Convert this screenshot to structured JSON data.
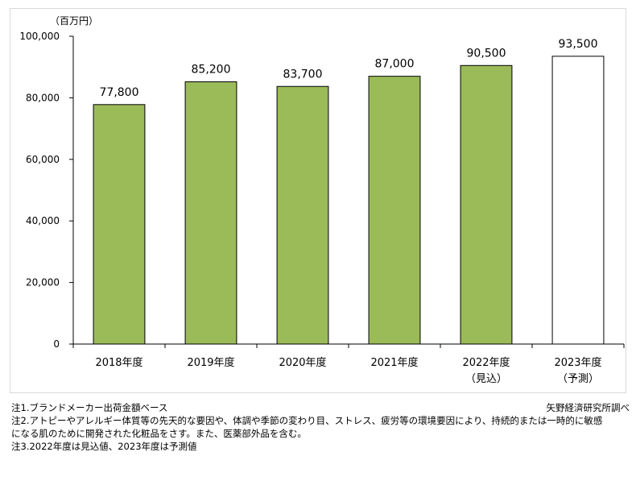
{
  "chart_data": {
    "type": "bar",
    "unit_label": "（百万円）",
    "categories": [
      "2018年度",
      "2019年度",
      "2020年度",
      "2021年度",
      "2022年度",
      "2023年度"
    ],
    "category_sublabels": [
      "",
      "",
      "",
      "",
      "（見込）",
      "（予測）"
    ],
    "values": [
      77800,
      85200,
      83700,
      87000,
      90500,
      93500
    ],
    "value_labels": [
      "77,800",
      "85,200",
      "83,700",
      "87,000",
      "90,500",
      "93,500"
    ],
    "bar_styles": [
      "actual",
      "actual",
      "actual",
      "actual",
      "actual",
      "forecast"
    ],
    "ylim": [
      0,
      100000
    ],
    "yticks": [
      0,
      20000,
      40000,
      60000,
      80000,
      100000
    ],
    "ytick_labels": [
      "0",
      "20,000",
      "40,000",
      "60,000",
      "80,000",
      "100,000"
    ],
    "grid": false,
    "colors": {
      "bar": "#9bbb59",
      "forecast_fill": "#ffffff",
      "outline": "#000000"
    }
  },
  "notes": [
    "注1.ブランドメーカー出荷金額ベース",
    "注2.アトピーやアレルギー体質等の先天的な要因や、体調や季節の変わり目、ストレス、疲労等の環境要因により、持続的または一時的に敏感",
    "になる肌のために開発された化粧品をさす。また、医薬部外品を含む。",
    "注3.2022年度は見込値、2023年度は予測値"
  ],
  "source": "矢野経済研究所調べ"
}
